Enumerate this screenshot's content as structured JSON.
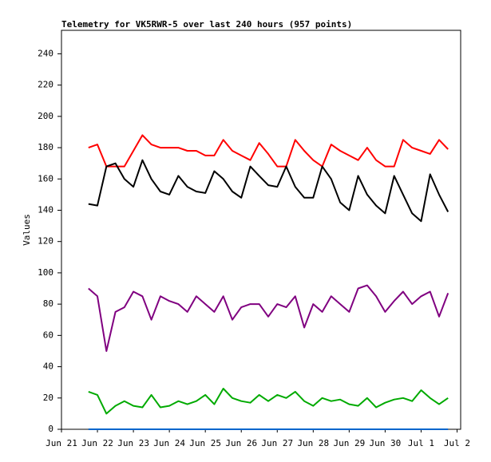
{
  "chart_data": {
    "type": "line",
    "title": "Telemetry for VK5RWR-5 over last 240 hours (957 points)",
    "ylabel": "Values",
    "x": [
      0.75,
      1,
      1.25,
      1.5,
      1.75,
      2,
      2.25,
      2.5,
      2.75,
      3,
      3.25,
      3.5,
      3.75,
      4,
      4.25,
      4.5,
      4.75,
      5,
      5.25,
      5.5,
      5.75,
      6,
      6.25,
      6.5,
      6.75,
      7,
      7.25,
      7.5,
      7.75,
      8,
      8.25,
      8.5,
      8.75,
      9,
      9.25,
      9.5,
      9.75,
      10,
      10.25,
      10.5,
      10.75
    ],
    "series": [
      {
        "color": "#ff0000",
        "values": [
          180,
          182,
          168,
          168,
          168,
          178,
          188,
          182,
          180,
          180,
          180,
          178,
          178,
          175,
          175,
          185,
          178,
          175,
          172,
          183,
          176,
          168,
          168,
          185,
          178,
          172,
          168,
          182,
          178,
          175,
          172,
          180,
          172,
          168,
          168,
          185,
          180,
          178,
          176,
          185,
          179
        ]
      },
      {
        "color": "#000000",
        "values": [
          144,
          143,
          168,
          170,
          160,
          155,
          172,
          160,
          152,
          150,
          162,
          155,
          152,
          151,
          165,
          160,
          152,
          148,
          168,
          162,
          156,
          155,
          168,
          155,
          148,
          148,
          168,
          160,
          145,
          140,
          162,
          150,
          143,
          138,
          162,
          150,
          138,
          133,
          163,
          150,
          139
        ]
      },
      {
        "color": "#800080",
        "values": [
          90,
          85,
          50,
          75,
          78,
          88,
          85,
          70,
          85,
          82,
          80,
          75,
          85,
          80,
          75,
          85,
          70,
          78,
          80,
          80,
          72,
          80,
          78,
          85,
          65,
          80,
          75,
          85,
          80,
          75,
          90,
          92,
          85,
          75,
          82,
          88,
          80,
          85,
          88,
          72,
          87
        ]
      },
      {
        "color": "#00aa00",
        "values": [
          24,
          22,
          10,
          15,
          18,
          15,
          14,
          22,
          14,
          15,
          18,
          16,
          18,
          22,
          16,
          26,
          20,
          18,
          17,
          22,
          18,
          22,
          20,
          24,
          18,
          15,
          20,
          18,
          19,
          16,
          15,
          20,
          14,
          17,
          19,
          20,
          18,
          25,
          20,
          16,
          20
        ]
      },
      {
        "color": "#0066cc",
        "values": [
          0,
          0,
          0,
          0,
          0,
          0,
          0,
          0,
          0,
          0,
          0,
          0,
          0,
          0,
          0,
          0,
          0,
          0,
          0,
          0,
          0,
          0,
          0,
          0,
          0,
          0,
          0,
          0,
          0,
          0,
          0,
          0,
          0,
          0,
          0,
          0,
          0,
          0,
          0,
          0,
          0
        ]
      }
    ],
    "xlim": [
      0,
      11.1
    ],
    "xticks": [
      {
        "value": 0,
        "label": "Jun 21"
      },
      {
        "value": 1,
        "label": "Jun 22"
      },
      {
        "value": 2,
        "label": "Jun 23"
      },
      {
        "value": 3,
        "label": "Jun 24"
      },
      {
        "value": 4,
        "label": "Jun 25"
      },
      {
        "value": 5,
        "label": "Jun 26"
      },
      {
        "value": 6,
        "label": "Jun 27"
      },
      {
        "value": 7,
        "label": "Jun 28"
      },
      {
        "value": 8,
        "label": "Jun 29"
      },
      {
        "value": 9,
        "label": "Jun 30"
      },
      {
        "value": 10,
        "label": "Jul 1"
      },
      {
        "value": 11,
        "label": "Jul 2"
      }
    ],
    "ylim": [
      0,
      255
    ],
    "yticks": [
      0,
      20,
      40,
      60,
      80,
      100,
      120,
      140,
      160,
      180,
      200,
      220,
      240
    ]
  }
}
